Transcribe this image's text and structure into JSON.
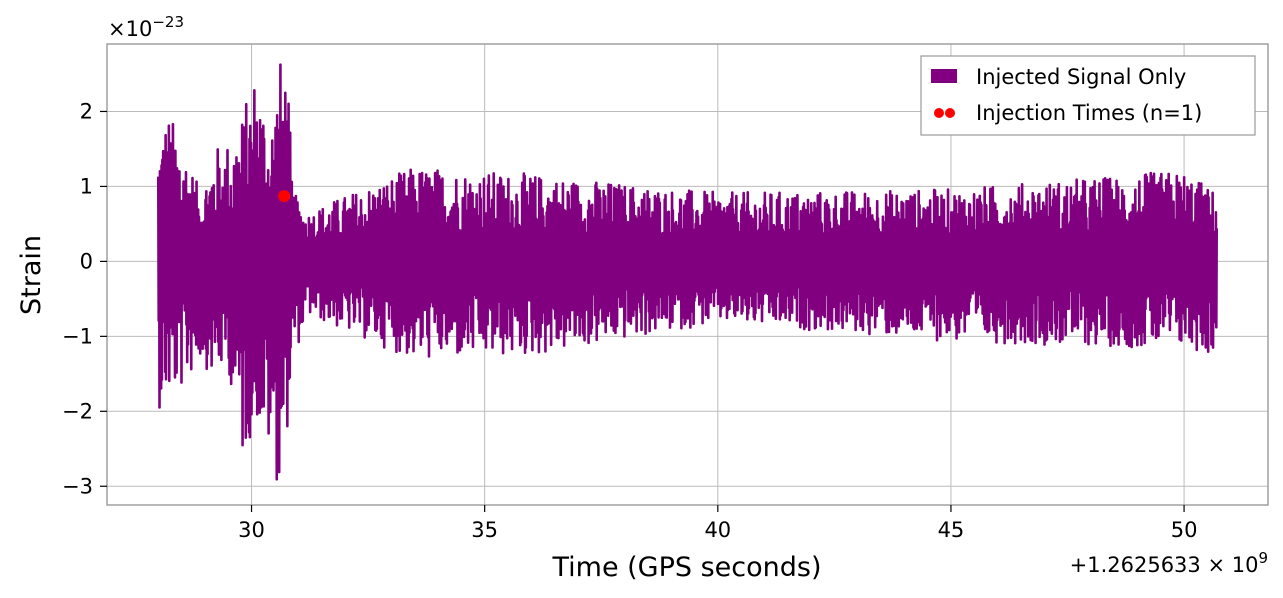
{
  "chart_data": {
    "type": "line",
    "title": "",
    "xlabel": "Time (GPS seconds)",
    "ylabel": "Strain",
    "x_offset_label": "+1.2625633 × 10",
    "x_offset_exponent": "9",
    "y_scale_label": "×10",
    "y_scale_exponent": "−23",
    "x_offset": 1262563300,
    "y_scale": 1e-23,
    "xlim": [
      26.9,
      51.8
    ],
    "ylim": [
      -3.25,
      2.9
    ],
    "x_ticks": [
      30,
      35,
      40,
      45,
      50
    ],
    "x_tick_labels": [
      "30",
      "35",
      "40",
      "45",
      "50"
    ],
    "y_ticks": [
      2,
      1,
      0,
      -1,
      -2,
      -3
    ],
    "y_tick_labels": [
      "2",
      "1",
      "0",
      "−1",
      "−2",
      "−3"
    ],
    "grid": true,
    "legend_position": "top-right",
    "series": [
      {
        "name": "Injected Signal Only",
        "color": "#800080",
        "kind": "line",
        "x_range": [
          28.0,
          50.7
        ],
        "envelope": [
          {
            "x": 28.0,
            "max": 1.6,
            "min": -1.85
          },
          {
            "x": 28.2,
            "max": 1.9,
            "min": -1.75
          },
          {
            "x": 28.5,
            "max": 1.55,
            "min": -1.6
          },
          {
            "x": 28.9,
            "max": 0.8,
            "min": -1.2
          },
          {
            "x": 29.2,
            "max": 1.4,
            "min": -1.45
          },
          {
            "x": 29.5,
            "max": 1.5,
            "min": -1.3
          },
          {
            "x": 29.8,
            "max": 1.85,
            "min": -2.55
          },
          {
            "x": 30.1,
            "max": 2.5,
            "min": -2.0
          },
          {
            "x": 30.4,
            "max": 1.7,
            "min": -2.5
          },
          {
            "x": 30.6,
            "max": 2.6,
            "min": -2.95
          },
          {
            "x": 30.75,
            "max": 2.55,
            "min": -2.25
          },
          {
            "x": 30.9,
            "max": 0.8,
            "min": -1.2
          },
          {
            "x": 31.2,
            "max": 0.55,
            "min": -0.6
          },
          {
            "x": 33.5,
            "max": 1.15,
            "min": -1.2
          },
          {
            "x": 36.0,
            "max": 1.05,
            "min": -1.15
          },
          {
            "x": 40.0,
            "max": 0.8,
            "min": -0.7
          },
          {
            "x": 45.0,
            "max": 0.85,
            "min": -0.95
          },
          {
            "x": 50.0,
            "max": 1.1,
            "min": -1.05
          },
          {
            "x": 50.7,
            "max": 0.8,
            "min": -1.15
          }
        ]
      },
      {
        "name": "Injection Times (n=1)",
        "color": "#ff0000",
        "kind": "scatter",
        "points": [
          {
            "x": 30.7,
            "y": 0.87
          }
        ]
      }
    ]
  }
}
